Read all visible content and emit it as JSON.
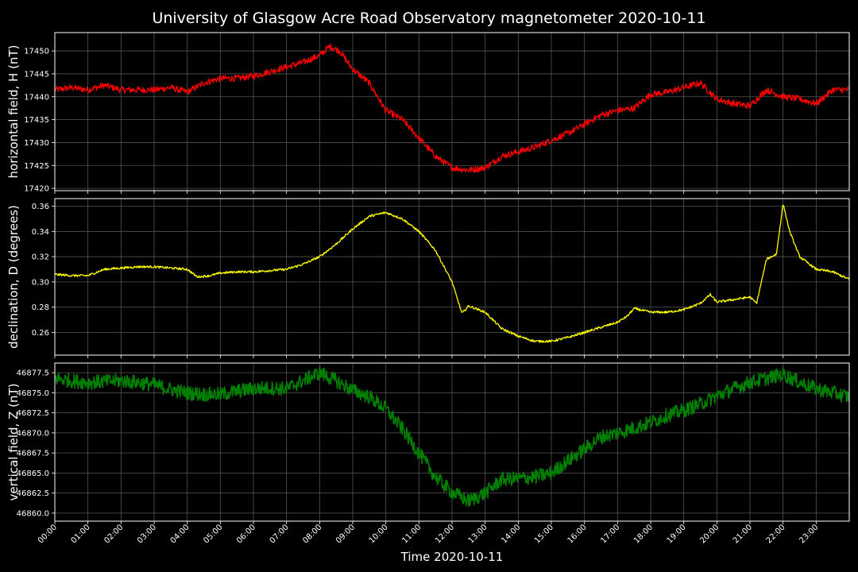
{
  "chart_data": {
    "type": "line",
    "title": "University of Glasgow Acre Road Observatory magnetometer 2020-10-11",
    "xlabel": "Time 2020-10-11",
    "x_ticks": [
      "00:00",
      "01:00",
      "02:00",
      "03:00",
      "04:00",
      "05:00",
      "06:00",
      "07:00",
      "08:00",
      "09:00",
      "10:00",
      "11:00",
      "12:00",
      "13:00",
      "14:00",
      "15:00",
      "16:00",
      "17:00",
      "18:00",
      "19:00",
      "20:00",
      "21:00",
      "22:00",
      "23:00"
    ],
    "xlim_hours": [
      0,
      24
    ],
    "grid": true,
    "background": "#000000",
    "grid_color": "#555555",
    "panels": [
      {
        "key": "H",
        "ylabel": "horizontal field, H (nT)",
        "color": "#ff0000",
        "ylim": [
          17419.5,
          17454
        ],
        "y_ticks": [
          "17420",
          "17425",
          "17430",
          "17435",
          "17440",
          "17445",
          "17450"
        ],
        "y_tick_values": [
          17420,
          17425,
          17430,
          17435,
          17440,
          17445,
          17450
        ],
        "noise": 0.7,
        "x": [
          0,
          0.5,
          1,
          1.5,
          2,
          2.5,
          3,
          3.5,
          4,
          4.5,
          5,
          5.5,
          6,
          6.5,
          7,
          7.5,
          8,
          8.3,
          8.6,
          9,
          9.5,
          10,
          10.5,
          11,
          11.5,
          12,
          12.5,
          13,
          13.5,
          14,
          14.5,
          15,
          15.5,
          16,
          16.5,
          17,
          17.5,
          18,
          18.5,
          19,
          19.5,
          20,
          20.5,
          21,
          21.5,
          22,
          22.5,
          23,
          23.5,
          24
        ],
        "values": [
          17441.5,
          17442,
          17441.5,
          17442.5,
          17441.5,
          17441.5,
          17441.5,
          17442,
          17441,
          17443,
          17444,
          17444,
          17444.5,
          17445.5,
          17446.5,
          17447.5,
          17449,
          17451,
          17450,
          17446,
          17443,
          17437,
          17435,
          17431,
          17427,
          17424.5,
          17424,
          17424.5,
          17427,
          17428,
          17429,
          17430.5,
          17432,
          17434,
          17436,
          17437,
          17437.5,
          17440.5,
          17441,
          17442,
          17443,
          17439.5,
          17438.5,
          17438,
          17441.5,
          17440,
          17439.5,
          17438.5,
          17441.5,
          17441.5
        ]
      },
      {
        "key": "D",
        "ylabel": "declination, D (degrees)",
        "color": "#ffff00",
        "ylim": [
          0.242,
          0.366
        ],
        "y_ticks": [
          "0.26",
          "0.28",
          "0.30",
          "0.32",
          "0.34",
          "0.36"
        ],
        "y_tick_values": [
          0.26,
          0.28,
          0.3,
          0.32,
          0.34,
          0.36
        ],
        "noise": 0.0009,
        "x": [
          0,
          0.5,
          1,
          1.5,
          2,
          2.5,
          3,
          3.5,
          4,
          4.3,
          4.7,
          5,
          5.5,
          6,
          6.5,
          7,
          7.5,
          8,
          8.5,
          9,
          9.5,
          10,
          10.5,
          11,
          11.5,
          12,
          12.3,
          12.5,
          13,
          13.5,
          14,
          14.5,
          15,
          15.5,
          16,
          16.5,
          17,
          17.3,
          17.5,
          18,
          18.5,
          19,
          19.5,
          19.8,
          20,
          20.5,
          21,
          21.2,
          21.5,
          21.8,
          22,
          22.2,
          22.5,
          23,
          23.5,
          24
        ],
        "values": [
          0.306,
          0.305,
          0.305,
          0.31,
          0.311,
          0.312,
          0.312,
          0.311,
          0.31,
          0.304,
          0.305,
          0.307,
          0.308,
          0.308,
          0.309,
          0.31,
          0.314,
          0.32,
          0.33,
          0.342,
          0.352,
          0.355,
          0.35,
          0.34,
          0.325,
          0.3,
          0.275,
          0.281,
          0.276,
          0.263,
          0.257,
          0.253,
          0.253,
          0.256,
          0.26,
          0.264,
          0.268,
          0.273,
          0.279,
          0.276,
          0.276,
          0.278,
          0.283,
          0.29,
          0.284,
          0.286,
          0.288,
          0.283,
          0.318,
          0.322,
          0.362,
          0.34,
          0.32,
          0.31,
          0.308,
          0.302
        ]
      },
      {
        "key": "Z",
        "ylabel": "vertical field, Z (nT)",
        "color": "#008000",
        "ylim": [
          46859,
          46878.7
        ],
        "y_ticks": [
          "46860.0",
          "46862.5",
          "46865.0",
          "46867.5",
          "46870.0",
          "46872.5",
          "46875.0",
          "46877.5"
        ],
        "y_tick_values": [
          46860,
          46862.5,
          46865,
          46867.5,
          46870,
          46872.5,
          46875,
          46877.5
        ],
        "noise": 0.9,
        "x": [
          0,
          0.5,
          1,
          1.5,
          2,
          2.5,
          3,
          3.5,
          4,
          4.5,
          5,
          5.5,
          6,
          6.5,
          7,
          7.5,
          8,
          8.5,
          9,
          9.5,
          10,
          10.5,
          11,
          11.5,
          12,
          12.5,
          13,
          13.5,
          14,
          14.5,
          15,
          15.5,
          16,
          16.5,
          17,
          17.5,
          18,
          18.5,
          19,
          19.5,
          20,
          20.5,
          21,
          21.5,
          22,
          22.5,
          23,
          23.5,
          24
        ],
        "values": [
          46876.8,
          46876.5,
          46876.3,
          46876.4,
          46876.5,
          46876.3,
          46876,
          46875.4,
          46875,
          46874.8,
          46874.8,
          46875.2,
          46875.5,
          46875.6,
          46875.5,
          46876.5,
          46877.5,
          46876.5,
          46875.3,
          46874.5,
          46873,
          46870.5,
          46867.5,
          46864.5,
          46862.6,
          46861.5,
          46862.5,
          46864.2,
          46864.3,
          46864.5,
          46865,
          46866.5,
          46868,
          46869.5,
          46870,
          46870.6,
          46871.3,
          46872.2,
          46872.8,
          46873.6,
          46874.6,
          46875.5,
          46876.3,
          46876.8,
          46877.3,
          46876.3,
          46875.5,
          46875,
          46874.5
        ]
      }
    ]
  }
}
